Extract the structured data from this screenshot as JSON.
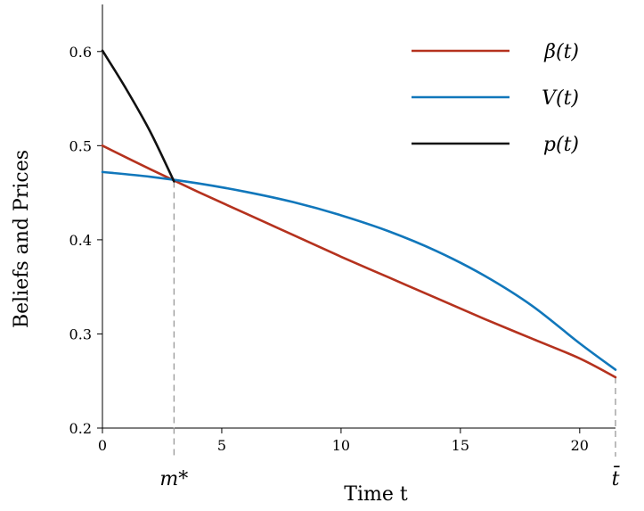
{
  "chart_data": {
    "type": "line",
    "title": "",
    "xlabel": "Time t",
    "ylabel": "Beliefs and Prices",
    "xlim": [
      0,
      21.5
    ],
    "ylim": [
      0.2,
      0.65
    ],
    "xticks": [
      0,
      5,
      10,
      15,
      20
    ],
    "xtick_labels": [
      "0",
      "5",
      "10",
      "15",
      "20"
    ],
    "yticks": [
      0.2,
      0.3,
      0.4,
      0.5,
      0.6
    ],
    "ytick_labels": [
      "0.2",
      "0.3",
      "0.4",
      "0.5",
      "0.6"
    ],
    "grid": false,
    "legend_position": "top-right",
    "markers": [
      {
        "x": 3,
        "label": "m*"
      },
      {
        "x": 21.5,
        "label": "t̄"
      }
    ],
    "series": [
      {
        "name": "β(t)",
        "color": "#b5321e",
        "x": [
          0,
          2,
          4,
          6,
          8,
          10,
          12,
          14,
          16,
          18,
          20,
          21.5
        ],
        "y": [
          0.5,
          0.475,
          0.451,
          0.428,
          0.405,
          0.382,
          0.36,
          0.338,
          0.316,
          0.295,
          0.274,
          0.254
        ]
      },
      {
        "name": "V(t)",
        "color": "#1177bb",
        "x": [
          0,
          2,
          4,
          6,
          8,
          10,
          12,
          14,
          16,
          18,
          20,
          21.5
        ],
        "y": [
          0.472,
          0.467,
          0.46,
          0.451,
          0.44,
          0.426,
          0.409,
          0.388,
          0.362,
          0.33,
          0.29,
          0.262
        ]
      },
      {
        "name": "p(t)",
        "color": "#111111",
        "x": [
          0,
          1,
          2,
          3
        ],
        "y": [
          0.601,
          0.56,
          0.515,
          0.462
        ]
      }
    ]
  }
}
